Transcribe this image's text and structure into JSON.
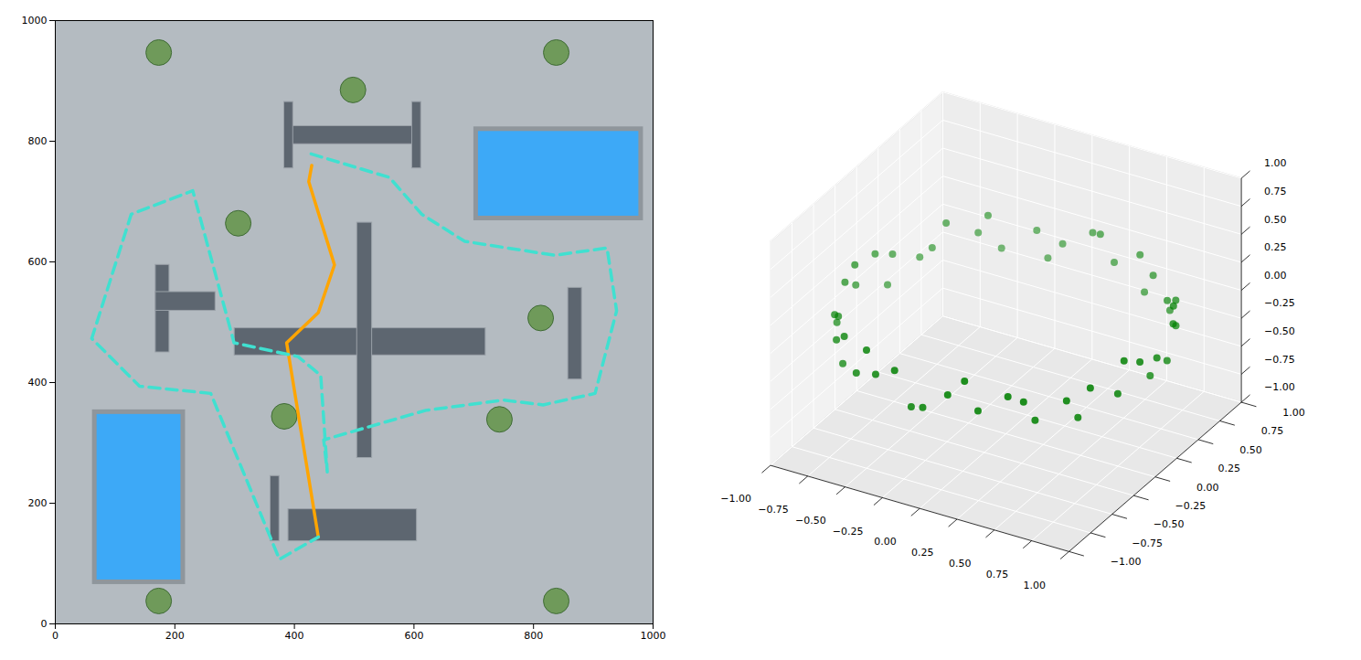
{
  "chart_data": [
    {
      "type": "map",
      "xlim": [
        0,
        1000
      ],
      "ylim": [
        0,
        1000
      ],
      "xticks": [
        0,
        200,
        400,
        600,
        800,
        1000
      ],
      "yticks": [
        0,
        200,
        400,
        600,
        800,
        1000
      ],
      "pools": {
        "color": "#3da9f7",
        "rects": [
          [
            704,
            980,
            672,
            820
          ],
          [
            66,
            214,
            69,
            351
          ]
        ]
      },
      "walls": {
        "color": "#5d6670",
        "rects": [
          [
            300,
            720,
            445,
            490
          ],
          [
            505,
            530,
            275,
            665
          ],
          [
            383,
            605,
            795,
            825
          ],
          [
            383,
            398,
            755,
            865
          ],
          [
            597,
            612,
            755,
            865
          ],
          [
            390,
            605,
            137,
            190
          ],
          [
            360,
            375,
            137,
            245
          ],
          [
            168,
            191,
            450,
            595
          ],
          [
            168,
            268,
            519,
            550
          ],
          [
            858,
            881,
            405,
            557
          ]
        ]
      },
      "trees": {
        "color": "#6f9a5a",
        "points": [
          [
            173,
            947
          ],
          [
            838,
            947
          ],
          [
            498,
            885
          ],
          [
            306,
            664
          ],
          [
            812,
            507
          ],
          [
            383,
            344
          ],
          [
            743,
            339
          ],
          [
            173,
            38
          ],
          [
            838,
            38
          ]
        ]
      },
      "series": [
        {
          "color": "#ffa500",
          "line_style": "solid",
          "points": [
            [
              440,
              144
            ],
            [
              387,
              466
            ],
            [
              440,
              516
            ],
            [
              467,
              595
            ],
            [
              424,
              733
            ],
            [
              429,
              760
            ]
          ]
        },
        {
          "color": "#40e0d0",
          "line_style": "dashed",
          "points": [
            [
              428,
              779
            ],
            [
              559,
              740
            ],
            [
              613,
              679
            ],
            [
              685,
              634
            ],
            [
              835,
              611
            ],
            [
              923,
              623
            ],
            [
              939,
              519
            ],
            [
              903,
              382
            ],
            [
              816,
              363
            ],
            [
              750,
              371
            ],
            [
              620,
              354
            ],
            [
              449,
              305
            ],
            [
              455,
              252
            ],
            [
              444,
              412
            ],
            [
              406,
              443
            ],
            [
              299,
              466
            ],
            [
              230,
              718
            ],
            [
              127,
              679
            ],
            [
              61,
              473
            ],
            [
              141,
              394
            ],
            [
              260,
              382
            ],
            [
              375,
              107
            ],
            [
              440,
              144
            ]
          ]
        }
      ]
    },
    {
      "type": "scatter3d",
      "color": "#008000",
      "xlim": [
        -1,
        1
      ],
      "ylim": [
        -1,
        1
      ],
      "zlim": [
        -1,
        1
      ],
      "xticks": [
        {
          "value": -1,
          "label": "−1.00"
        },
        {
          "value": -0.75,
          "label": "−0.75"
        },
        {
          "value": -0.5,
          "label": "−0.50"
        },
        {
          "value": -0.25,
          "label": "−0.25"
        },
        {
          "value": 0,
          "label": "0.00"
        },
        {
          "value": 0.25,
          "label": "0.25"
        },
        {
          "value": 0.5,
          "label": "0.50"
        },
        {
          "value": 0.75,
          "label": "0.75"
        },
        {
          "value": 1,
          "label": "1.00"
        }
      ],
      "yticks": [
        {
          "value": -1,
          "label": "−1.00"
        },
        {
          "value": -0.75,
          "label": "−0.75"
        },
        {
          "value": -0.5,
          "label": "−0.50"
        },
        {
          "value": -0.25,
          "label": "−0.25"
        },
        {
          "value": 0,
          "label": "0.00"
        },
        {
          "value": 0.25,
          "label": "0.25"
        },
        {
          "value": 0.5,
          "label": "0.50"
        },
        {
          "value": 0.75,
          "label": "0.75"
        },
        {
          "value": 1,
          "label": "1.00"
        }
      ],
      "zticks": [
        {
          "value": -1,
          "label": "−1.00"
        },
        {
          "value": -0.75,
          "label": "−0.75"
        },
        {
          "value": -0.5,
          "label": "−0.50"
        },
        {
          "value": -0.25,
          "label": "−0.25"
        },
        {
          "value": 0,
          "label": "0.00"
        },
        {
          "value": 0.25,
          "label": "0.25"
        },
        {
          "value": 0.5,
          "label": "0.50"
        },
        {
          "value": 0.75,
          "label": "0.75"
        },
        {
          "value": 1,
          "label": "1.00"
        }
      ],
      "points": [
        [
          1.0,
          0.02,
          0.05
        ],
        [
          0.97,
          0.19,
          -0.1
        ],
        [
          0.93,
          0.33,
          0.12
        ],
        [
          0.85,
          0.5,
          -0.04
        ],
        [
          0.78,
          0.62,
          0.08
        ],
        [
          0.66,
          0.76,
          -0.15
        ],
        [
          0.49,
          0.86,
          0.03
        ],
        [
          0.35,
          0.95,
          0.1
        ],
        [
          0.16,
          0.98,
          -0.06
        ],
        [
          0.01,
          0.99,
          0.14
        ],
        [
          -0.18,
          0.97,
          -0.02
        ],
        [
          -0.33,
          0.93,
          0.07
        ],
        [
          -0.52,
          0.85,
          -0.11
        ],
        [
          -0.63,
          0.77,
          0.04
        ],
        [
          -0.77,
          0.64,
          0.16
        ],
        [
          -0.86,
          0.49,
          -0.08
        ],
        [
          -0.95,
          0.33,
          0.02
        ],
        [
          -0.98,
          0.18,
          0.11
        ],
        [
          -1.0,
          -0.01,
          -0.05
        ],
        [
          -0.98,
          -0.17,
          0.09
        ],
        [
          -0.93,
          -0.35,
          -0.13
        ],
        [
          -0.87,
          -0.48,
          0.05
        ],
        [
          -0.76,
          -0.65,
          -0.02
        ],
        [
          -0.65,
          -0.75,
          0.12
        ],
        [
          -0.5,
          -0.87,
          -0.07
        ],
        [
          -0.33,
          -0.94,
          0.03
        ],
        [
          -0.18,
          -0.98,
          0.15
        ],
        [
          0.02,
          -1.0,
          -0.09
        ],
        [
          0.17,
          -0.97,
          0.06
        ],
        [
          0.35,
          -0.93,
          -0.04
        ],
        [
          0.51,
          -0.86,
          0.1
        ],
        [
          0.64,
          -0.77,
          -0.12
        ],
        [
          0.77,
          -0.63,
          0.01
        ],
        [
          0.86,
          -0.51,
          0.08
        ],
        [
          0.94,
          -0.33,
          -0.06
        ],
        [
          0.99,
          -0.16,
          0.13
        ],
        [
          0.92,
          0.08,
          -0.18
        ],
        [
          0.88,
          0.42,
          0.2
        ],
        [
          0.7,
          0.66,
          0.02
        ],
        [
          0.42,
          0.88,
          -0.16
        ],
        [
          0.09,
          0.94,
          0.19
        ],
        [
          -0.25,
          0.92,
          -0.14
        ],
        [
          -0.57,
          0.78,
          0.21
        ],
        [
          -0.8,
          0.53,
          0.0
        ],
        [
          -0.92,
          0.22,
          -0.17
        ],
        [
          -0.96,
          -0.09,
          0.2
        ],
        [
          -0.88,
          -0.42,
          -0.01
        ],
        [
          -0.7,
          -0.68,
          -0.19
        ],
        [
          -0.42,
          -0.89,
          0.18
        ],
        [
          -0.08,
          -0.96,
          -0.15
        ],
        [
          0.26,
          -0.93,
          0.19
        ],
        [
          0.58,
          -0.8,
          0.04
        ],
        [
          0.8,
          -0.55,
          -0.18
        ],
        [
          0.93,
          -0.24,
          0.17
        ]
      ]
    }
  ]
}
